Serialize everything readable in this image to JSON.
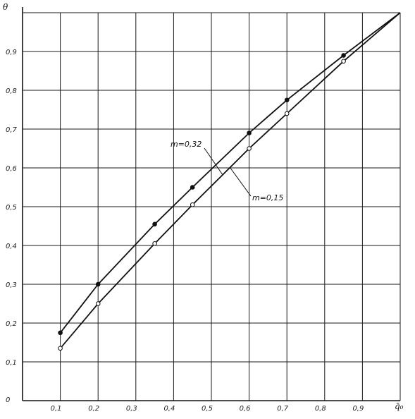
{
  "chart_data": {
    "type": "line",
    "title": "",
    "xlabel": "q̄₀",
    "ylabel": "θ",
    "xlim": [
      0,
      1.0
    ],
    "ylim": [
      0,
      1.0
    ],
    "grid": true,
    "x_grid": [
      0.1,
      0.2,
      0.3,
      0.4,
      0.5,
      0.6,
      0.7,
      0.8,
      0.9,
      1.0
    ],
    "y_grid": [
      0.1,
      0.2,
      0.3,
      0.4,
      0.5,
      0.6,
      0.7,
      0.8,
      0.9,
      1.0
    ],
    "x_ticks": [
      {
        "value": 0.1,
        "label": "0,1"
      },
      {
        "value": 0.2,
        "label": "0,2"
      },
      {
        "value": 0.3,
        "label": "0,3"
      },
      {
        "value": 0.4,
        "label": "0,4"
      },
      {
        "value": 0.5,
        "label": "0,5"
      },
      {
        "value": 0.6,
        "label": "0,6"
      },
      {
        "value": 0.7,
        "label": "0,7"
      },
      {
        "value": 0.8,
        "label": "0,8"
      },
      {
        "value": 0.9,
        "label": "0,9"
      }
    ],
    "y_ticks": [
      {
        "value": 0,
        "label": "0"
      },
      {
        "value": 0.1,
        "label": "0,1"
      },
      {
        "value": 0.2,
        "label": "0,2"
      },
      {
        "value": 0.3,
        "label": "0,3"
      },
      {
        "value": 0.4,
        "label": "0,4"
      },
      {
        "value": 0.5,
        "label": "0,5"
      },
      {
        "value": 0.6,
        "label": "0,6"
      },
      {
        "value": 0.7,
        "label": "0,7"
      },
      {
        "value": 0.8,
        "label": "0,8"
      },
      {
        "value": 0.9,
        "label": "0,9"
      }
    ],
    "series": [
      {
        "name": "m=0,32",
        "marker": "filled",
        "x": [
          0.1,
          0.2,
          0.35,
          0.45,
          0.6,
          0.7,
          0.85,
          1.0
        ],
        "y": [
          0.175,
          0.3,
          0.455,
          0.55,
          0.69,
          0.775,
          0.89,
          1.0
        ]
      },
      {
        "name": "m=0,15",
        "marker": "open",
        "x": [
          0.1,
          0.2,
          0.35,
          0.45,
          0.6,
          0.7,
          0.85,
          1.0
        ],
        "y": [
          0.135,
          0.25,
          0.405,
          0.505,
          0.65,
          0.74,
          0.875,
          1.0
        ]
      }
    ],
    "annotations": [
      {
        "text": "m=0,32",
        "series": "m=0,32"
      },
      {
        "text": "m=0,15",
        "series": "m=0,15"
      }
    ]
  }
}
